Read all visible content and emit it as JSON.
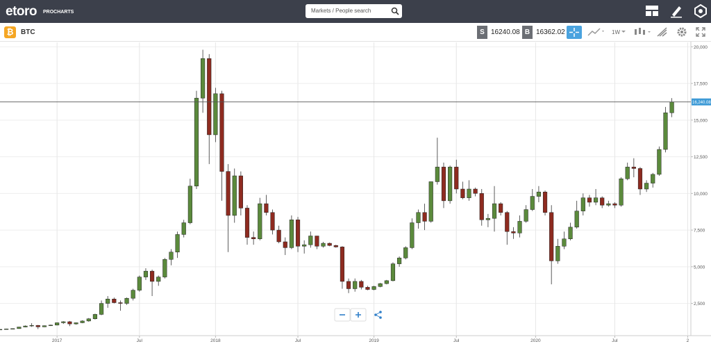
{
  "header": {
    "logo": "etoro",
    "logo_sub": "PROCHARTS",
    "search_placeholder": "Markets / People search"
  },
  "toolbar": {
    "symbol_icon": "₿",
    "symbol": "BTC",
    "sell_label": "S",
    "sell_price": "16240.08",
    "buy_label": "B",
    "buy_price": "16362.02",
    "interval": "1W"
  },
  "chart_data": {
    "type": "candlestick",
    "up_color": "#5b8a3c",
    "down_color": "#8e2b20",
    "grid": true,
    "x": [
      0,
      2,
      4,
      6,
      8,
      10,
      12,
      14,
      16,
      18,
      20,
      22,
      24,
      26,
      28,
      30,
      32,
      34,
      36,
      38,
      40,
      42,
      44,
      46,
      48,
      50,
      52,
      54,
      56,
      58,
      60,
      62,
      64,
      66,
      68,
      70,
      72,
      74,
      76,
      78,
      80,
      82,
      84,
      86,
      88,
      90,
      92,
      94,
      96,
      98,
      100,
      102,
      104,
      106,
      108,
      110,
      112,
      114,
      116,
      118,
      120,
      122,
      124,
      126,
      128,
      130,
      132,
      134,
      136,
      138,
      140,
      142,
      144,
      146,
      148,
      150,
      152,
      154,
      156,
      158,
      160,
      162,
      164,
      166,
      168,
      170,
      172,
      174,
      176,
      178,
      180,
      182,
      184,
      186,
      188,
      190,
      192,
      194,
      196,
      198,
      200,
      202,
      204,
      206,
      208,
      210,
      212
    ],
    "open": [
      700,
      730,
      760,
      780,
      890,
      960,
      1000,
      900,
      980,
      1020,
      1180,
      1250,
      1100,
      1180,
      1300,
      1450,
      1750,
      2500,
      2800,
      2550,
      2500,
      2850,
      3400,
      4300,
      4700,
      4000,
      4300,
      5500,
      6000,
      7200,
      8000,
      10500,
      16500,
      19200,
      14000,
      16800,
      11500,
      8500,
      11200,
      9000,
      7000,
      6900,
      9300,
      8700,
      7500,
      6700,
      6300,
      8200,
      6400,
      6500,
      7100,
      6400,
      6600,
      6450,
      6350,
      4000,
      3500,
      4000,
      3600,
      3450,
      3650,
      3850,
      4050,
      5200,
      5600,
      6300,
      8000,
      8700,
      8100,
      10800,
      11800,
      9500,
      11800,
      10300,
      9700,
      10300,
      10000,
      8200,
      8300,
      9300,
      8700,
      7400,
      7300,
      8100,
      8900,
      9800,
      10100,
      8700,
      5400,
      6400,
      6900,
      7700,
      8800,
      9700,
      9400,
      9700,
      9200,
      9300,
      9200,
      11000,
      11800,
      11700,
      10300,
      10700,
      11300,
      13000,
      15500
    ],
    "high": [
      740,
      780,
      790,
      900,
      1000,
      1150,
      1030,
      1000,
      1050,
      1200,
      1290,
      1300,
      1200,
      1350,
      1500,
      1800,
      2700,
      3000,
      2900,
      2700,
      2900,
      3500,
      4400,
      4900,
      4800,
      4400,
      5600,
      6200,
      7400,
      8200,
      11000,
      17000,
      19800,
      19500,
      17200,
      17000,
      12000,
      11700,
      11500,
      9200,
      7400,
      9700,
      9900,
      8900,
      7800,
      7000,
      8500,
      8400,
      6800,
      7400,
      7100,
      6700,
      6650,
      6500,
      6400,
      4200,
      4200,
      4100,
      3700,
      3700,
      3900,
      4100,
      5300,
      5700,
      6400,
      8300,
      8900,
      9300,
      10800,
      13800,
      12100,
      11900,
      12300,
      10800,
      10900,
      10400,
      10300,
      8600,
      10500,
      9400,
      8800,
      7700,
      8500,
      9200,
      10300,
      10500,
      10200,
      9200,
      6900,
      7400,
      8000,
      9500,
      10000,
      9900,
      10300,
      9800,
      9500,
      9400,
      11100,
      12100,
      12400,
      11800,
      10900,
      11400,
      13200,
      15900,
      16500
    ],
    "low": [
      690,
      720,
      750,
      770,
      870,
      900,
      750,
      880,
      960,
      1000,
      1100,
      950,
      1050,
      1150,
      1250,
      1400,
      1700,
      2200,
      2500,
      2000,
      2400,
      2700,
      3300,
      4100,
      3000,
      3700,
      4200,
      5100,
      5600,
      7000,
      7900,
      10300,
      15500,
      12000,
      13500,
      9500,
      6000,
      8000,
      8500,
      6500,
      6500,
      6800,
      8500,
      7200,
      6600,
      5800,
      6200,
      6000,
      5900,
      6300,
      6200,
      6300,
      6400,
      6300,
      3500,
      3200,
      3300,
      3450,
      3400,
      3400,
      3600,
      3800,
      4000,
      5000,
      5500,
      6200,
      7600,
      7500,
      8000,
      10600,
      9000,
      9300,
      10000,
      9600,
      9500,
      9800,
      7800,
      7700,
      7400,
      8500,
      6500,
      6900,
      7000,
      8000,
      8800,
      9400,
      8500,
      3800,
      5200,
      6200,
      6800,
      7600,
      8500,
      9100,
      9200,
      9000,
      9100,
      9000,
      9100,
      10900,
      11100,
      9900,
      10100,
      10400,
      11200,
      12800,
      15200
    ],
    "close": [
      730,
      760,
      780,
      890,
      960,
      1000,
      900,
      980,
      1020,
      1180,
      1250,
      1100,
      1180,
      1300,
      1450,
      1750,
      2500,
      2800,
      2550,
      2500,
      2850,
      3400,
      4300,
      4700,
      4000,
      4300,
      5500,
      6000,
      7200,
      8000,
      10500,
      16500,
      19200,
      14000,
      16800,
      11500,
      8500,
      11200,
      9000,
      7000,
      6900,
      9300,
      8700,
      7500,
      6700,
      6300,
      8200,
      6400,
      6500,
      7100,
      6400,
      6600,
      6450,
      6350,
      4000,
      3500,
      4000,
      3600,
      3450,
      3650,
      3850,
      4050,
      5200,
      5600,
      6300,
      8000,
      8700,
      8100,
      10800,
      11800,
      9500,
      11800,
      10300,
      9700,
      10300,
      10000,
      8200,
      8300,
      9300,
      8700,
      7400,
      7300,
      8100,
      8900,
      9800,
      10100,
      8700,
      5400,
      6400,
      6900,
      7700,
      8800,
      9700,
      9400,
      9700,
      9200,
      9300,
      9200,
      11000,
      11800,
      11700,
      10300,
      10700,
      11300,
      13000,
      15500,
      16240
    ],
    "xlim": [
      0,
      218
    ],
    "xticks": [
      {
        "value": 18,
        "label": "2017"
      },
      {
        "value": 44,
        "label": "Jul"
      },
      {
        "value": 68,
        "label": "2018"
      },
      {
        "value": 94,
        "label": "Jul"
      },
      {
        "value": 118,
        "label": "2019"
      },
      {
        "value": 144,
        "label": "Jul"
      },
      {
        "value": 169,
        "label": "2020"
      },
      {
        "value": 194,
        "label": "Jul"
      },
      {
        "value": 217,
        "label": "2"
      }
    ],
    "ylim": [
      300,
      20300
    ],
    "yticks": [
      {
        "value": 2500,
        "label": "2,500"
      },
      {
        "value": 5000,
        "label": "5,000"
      },
      {
        "value": 7500,
        "label": "7,500"
      },
      {
        "value": 10000,
        "label": "10,000"
      },
      {
        "value": 12500,
        "label": "12,500"
      },
      {
        "value": 15000,
        "label": "15,000"
      },
      {
        "value": 17500,
        "label": "17,500"
      },
      {
        "value": 20000,
        "label": "20,000"
      }
    ],
    "price_line": {
      "value": 16240.08,
      "label": "16,240.08"
    }
  }
}
